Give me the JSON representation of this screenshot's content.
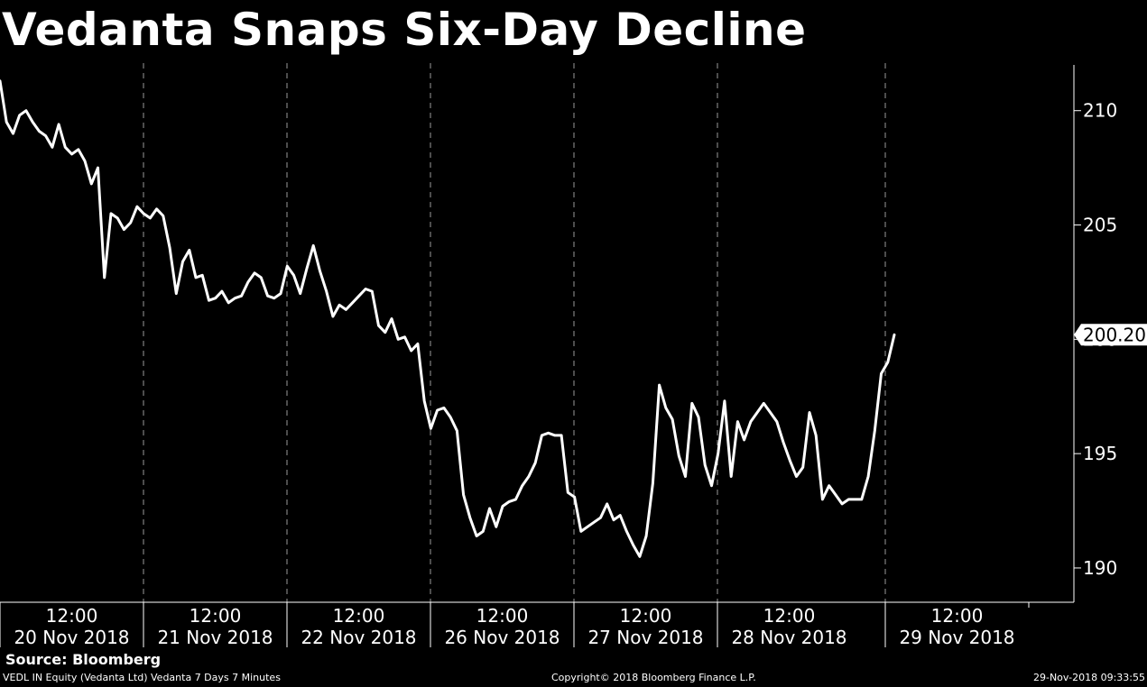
{
  "chart_data": {
    "type": "line",
    "title": "Vedanta Snaps Six-Day Decline",
    "source": "Source: Bloomberg",
    "footer_left": "VEDL IN Equity (Vedanta Ltd) Vedanta 7 Days 7 Minutes",
    "footer_center": "Copyright© 2018 Bloomberg Finance L.P.",
    "footer_right": "29-Nov-2018 09:33:55",
    "y_axis": {
      "position": "right",
      "ylim": [
        188.5,
        212
      ],
      "ticks": [
        190,
        195,
        200,
        205,
        210
      ]
    },
    "x_axis": {
      "sessions": [
        {
          "time": "12:00",
          "date": "20 Nov 2018"
        },
        {
          "time": "12:00",
          "date": "21 Nov 2018"
        },
        {
          "time": "12:00",
          "date": "22 Nov 2018"
        },
        {
          "time": "12:00",
          "date": "26 Nov 2018"
        },
        {
          "time": "12:00",
          "date": "27 Nov 2018"
        },
        {
          "time": "12:00",
          "date": "28 Nov 2018"
        },
        {
          "time": "12:00",
          "date": "29 Nov 2018"
        }
      ]
    },
    "last_price_label": "200.20",
    "grid": "vertical dashed session separators",
    "series": [
      {
        "values": [
          211.3,
          209.5,
          209.0,
          209.8,
          210.0,
          209.5,
          209.1,
          208.9,
          208.4,
          209.4,
          208.4,
          208.1,
          208.3,
          207.8,
          206.8,
          207.5,
          202.7,
          205.5,
          205.3,
          204.8,
          205.1,
          205.8,
          205.5,
          205.3,
          205.7,
          205.4,
          204.0,
          202.0,
          203.4,
          203.9,
          202.7,
          202.8,
          201.7,
          201.8,
          202.1,
          201.6,
          201.8,
          201.9,
          202.5,
          202.9,
          202.7,
          201.9,
          201.8,
          202.0,
          203.2,
          202.8,
          202.0,
          203.1,
          204.1,
          203.0,
          202.1,
          201.0,
          201.5,
          201.3,
          201.6,
          201.9,
          202.2,
          202.1,
          200.6,
          200.3,
          200.9,
          200.0,
          200.1,
          199.5,
          199.8,
          197.3,
          196.1,
          196.9,
          197.0,
          196.6,
          196.0,
          193.2,
          192.2,
          191.4,
          191.6,
          192.6,
          191.8,
          192.7,
          192.9,
          193.0,
          193.6,
          194.0,
          194.6,
          195.8,
          195.9,
          195.8,
          195.8,
          193.3,
          193.1,
          191.6,
          191.8,
          192.0,
          192.2,
          192.8,
          192.1,
          192.3,
          191.6,
          191.0,
          190.5,
          191.4,
          193.7,
          198.0,
          197.0,
          196.5,
          194.9,
          194.0,
          197.2,
          196.6,
          194.5,
          193.6,
          195.0,
          197.3,
          194.0,
          196.4,
          195.6,
          196.4,
          196.8,
          197.2,
          196.8,
          196.4,
          195.5,
          194.7,
          194.0,
          194.4,
          196.8,
          195.8,
          193.0,
          193.6,
          193.2,
          192.8,
          193.0,
          193.0,
          193.0,
          194.0,
          196.0,
          198.5,
          199.0,
          200.2
        ]
      }
    ]
  }
}
